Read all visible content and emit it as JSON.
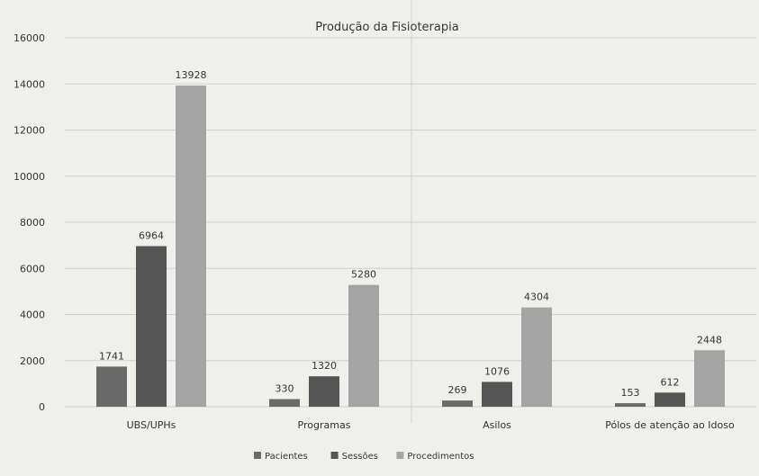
{
  "chart_data": {
    "type": "bar",
    "title": "Produção da Fisioterapia",
    "xlabel": "",
    "ylabel": "",
    "categories": [
      "UBS/UPHs",
      "Programas",
      "Asilos",
      "Pólos de atenção ao Idoso"
    ],
    "series": [
      {
        "name": "Pacientes",
        "values": [
          1741,
          330,
          269,
          153
        ],
        "color": "#6a6a6a"
      },
      {
        "name": "Sessões",
        "values": [
          6964,
          1320,
          1076,
          612
        ],
        "color": "#555555"
      },
      {
        "name": "Procedimentos",
        "values": [
          13928,
          5280,
          4304,
          2448
        ],
        "color": "#a4a4a4"
      }
    ],
    "yticks": [
      0,
      2000,
      4000,
      6000,
      8000,
      10000,
      12000,
      14000,
      16000
    ],
    "ylim": [
      0,
      16000
    ],
    "grid": true,
    "legend_position": "bottom"
  }
}
